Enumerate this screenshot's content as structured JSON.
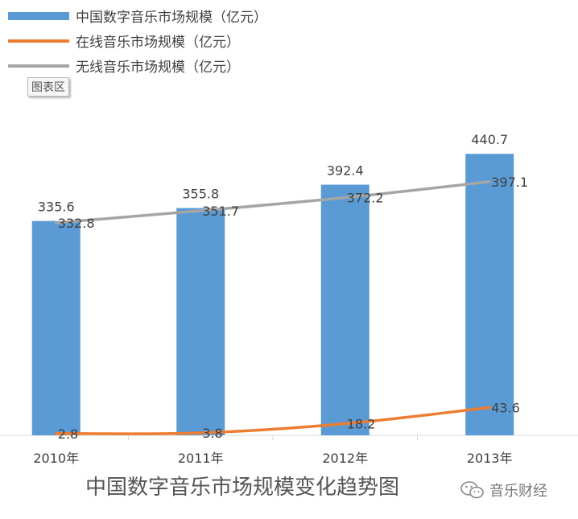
{
  "chart_data": {
    "type": "bar",
    "title": "中国数字音乐市场规模变化趋势图",
    "categories": [
      "2010年",
      "2011年",
      "2012年",
      "2013年"
    ],
    "ylim": [
      0,
      480
    ],
    "grid": false,
    "legend_position": "top-left",
    "series": [
      {
        "name": "中国数字音乐市场规模（亿元）",
        "type": "bar",
        "color": "#5b9bd5",
        "values": [
          335.6,
          355.8,
          392.4,
          440.7
        ]
      },
      {
        "name": "在线音乐市场规模（亿元）",
        "type": "line",
        "color": "#ed7d31",
        "values": [
          2.8,
          3.8,
          18.2,
          43.6
        ]
      },
      {
        "name": "无线音乐市场规模（亿元）",
        "type": "line",
        "color": "#a5a5a5",
        "values": [
          332.8,
          351.7,
          372.2,
          397.1
        ]
      }
    ]
  },
  "chart_area_tag": "图表区",
  "watermark": {
    "text": "音乐财经",
    "icon": "wechat-icon"
  }
}
